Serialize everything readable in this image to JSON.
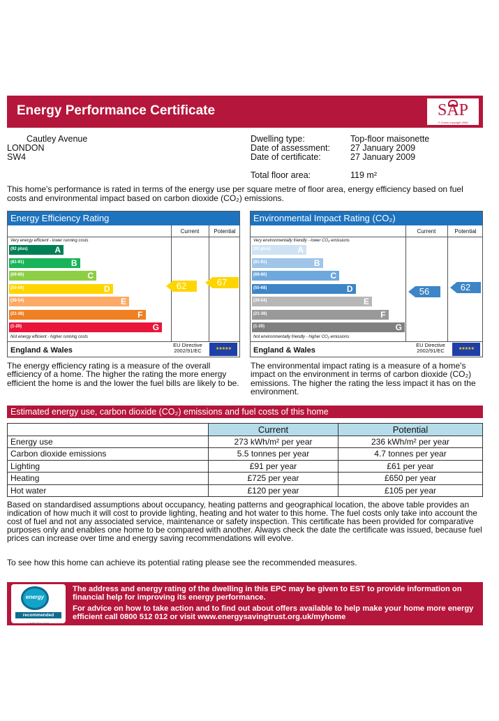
{
  "header": {
    "title": "Energy Performance Certificate",
    "logo_text": "SAP",
    "logo_small": "© Crown copyright 2008"
  },
  "address": {
    "line1": "Cautley Avenue",
    "line2": "LONDON",
    "line3": "SW4"
  },
  "details": {
    "dwelling_type_label": "Dwelling type:",
    "dwelling_type": "Top-floor maisonette",
    "assessment_label": "Date of assessment:",
    "assessment": "27 January 2009",
    "certificate_label": "Date of certificate:",
    "certificate": "27 January 2009",
    "floor_area_label": "Total floor area:",
    "floor_area": "119 m²"
  },
  "intro": "This home's performance is rated in terms of the energy use per square metre of floor area, energy efficiency based on fuel costs and environmental impact based on carbon dioxide (CO₂) emissions.",
  "efficiency": {
    "title": "Energy Efficiency Rating",
    "col_current": "Current",
    "col_potential": "Potential",
    "top_note": "Very energy efficient - lower running costs",
    "bottom_note": "Not energy efficient - higher running costs",
    "bands": [
      {
        "range": "(92 plus)",
        "letter": "A",
        "color": "#008054"
      },
      {
        "range": "(81-91)",
        "letter": "B",
        "color": "#19b459"
      },
      {
        "range": "(69-80)",
        "letter": "C",
        "color": "#8dce46"
      },
      {
        "range": "(55-68)",
        "letter": "D",
        "color": "#ffd500"
      },
      {
        "range": "(39-54)",
        "letter": "E",
        "color": "#fcaa65"
      },
      {
        "range": "(21-38)",
        "letter": "F",
        "color": "#ef8023"
      },
      {
        "range": "(1-20)",
        "letter": "G",
        "color": "#e9153b"
      }
    ],
    "current": "62",
    "potential": "67",
    "current_color": "#ffd500",
    "potential_color": "#ffd500",
    "region": "England & Wales",
    "directive": "EU Directive 2002/91/EC",
    "description": "The energy efficiency rating is a measure of the overall efficiency of a home. The higher the rating the more energy efficient the home is and the lower the fuel bills are likely to be."
  },
  "environmental": {
    "title": "Environmental Impact Rating (CO₂)",
    "col_current": "Current",
    "col_potential": "Potential",
    "top_note": "Very environmentally friendly - lower CO₂ emissions",
    "bottom_note": "Not environmentally friendly - higher CO₂ emissions",
    "bands": [
      {
        "range": "(92 plus)",
        "letter": "A",
        "color": "#cfe2f3"
      },
      {
        "range": "(81-91)",
        "letter": "B",
        "color": "#9fc5e8"
      },
      {
        "range": "(69-80)",
        "letter": "C",
        "color": "#6fa8dc"
      },
      {
        "range": "(55-68)",
        "letter": "D",
        "color": "#3d85c6"
      },
      {
        "range": "(39-54)",
        "letter": "E",
        "color": "#b7b7b7"
      },
      {
        "range": "(21-38)",
        "letter": "F",
        "color": "#999999"
      },
      {
        "range": "(1-20)",
        "letter": "G",
        "color": "#808080"
      }
    ],
    "current": "56",
    "potential": "62",
    "current_color": "#3d85c6",
    "potential_color": "#3d85c6",
    "region": "England & Wales",
    "directive": "EU Directive 2002/91/EC",
    "description": "The environmental impact rating is a measure of a home's impact on the environment in terms of carbon dioxide (CO₂) emissions. The higher the rating the less impact it has on the environment."
  },
  "estimates": {
    "title": "Estimated energy use, carbon dioxide (CO₂) emissions and fuel costs of this home",
    "col_current": "Current",
    "col_potential": "Potential",
    "rows": [
      {
        "label": "Energy use",
        "current": "273 kWh/m² per year",
        "potential": "236 kWh/m² per year"
      },
      {
        "label": "Carbon dioxide emissions",
        "current": "5.5 tonnes per year",
        "potential": "4.7 tonnes per year"
      },
      {
        "label": "Lighting",
        "current": "£91 per year",
        "potential": "£61 per year"
      },
      {
        "label": "Heating",
        "current": "£725 per year",
        "potential": "£650 per year"
      },
      {
        "label": "Hot water",
        "current": "£120 per year",
        "potential": "£105 per year"
      }
    ]
  },
  "assumptions": "Based on standardised assumptions about occupancy, heating patterns and geographical location, the above table provides an indication of how much it will cost to provide lighting, heating and hot water to this home. The fuel costs only take into account the cost of fuel and not any associated service, maintenance or safety inspection. This certificate has been provided for comparative purposes only and enables one home to be compared with another. Always check the date the certificate was issued, because fuel prices can increase over time and energy saving recommendations will evolve.",
  "see_measures": "To see how this home can achieve its potential rating please see the recommended measures.",
  "bottom": {
    "line1": "The address and energy rating of the dwelling in this EPC may be given to EST to provide information on financial help for improving its energy performance.",
    "line2": "For advice on how to take action and to find out about offers available to help make your home more energy efficient call 0800 512 012 or visit www.energysavingtrust.org.uk/myhome",
    "logo_energy": "energy saving",
    "logo_rec": "recommended",
    "logo_small": "Certification mark"
  }
}
